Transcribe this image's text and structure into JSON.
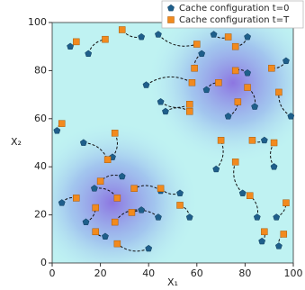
{
  "chart_data": {
    "type": "scatter",
    "xlabel": "X₁",
    "ylabel": "X₂",
    "xlim": [
      0,
      100
    ],
    "ylim": [
      0,
      100
    ],
    "xticks": [
      0,
      20,
      40,
      60,
      80,
      100
    ],
    "yticks": [
      0,
      20,
      40,
      60,
      80,
      100
    ],
    "legend": "upper right",
    "series": [
      {
        "name": "Cache configuration t=0",
        "color": "#1f5f8b",
        "marker": "pentagon",
        "x": [
          15,
          7.5,
          37,
          44,
          39,
          45,
          47,
          67,
          81,
          62,
          64,
          81,
          97,
          84,
          99,
          73,
          88,
          68,
          79,
          85,
          92,
          93,
          94,
          87,
          2,
          25,
          13,
          29,
          4,
          14,
          22,
          37,
          17.5,
          45,
          53,
          57,
          40,
          44
        ],
        "values": [
          87,
          90,
          94,
          95,
          74,
          67,
          63,
          95,
          94,
          87,
          72,
          79,
          84,
          65,
          61,
          61,
          51,
          39,
          29,
          19,
          40,
          19,
          7,
          9,
          55,
          44,
          50,
          36,
          25,
          17,
          11,
          22,
          31,
          30,
          29,
          19,
          6,
          19
        ]
      },
      {
        "name": "Cache configuration t=T",
        "color": "#f28a1e",
        "marker": "square",
        "x": [
          22,
          10,
          29,
          60,
          58,
          57,
          57,
          73,
          76,
          59,
          69,
          76,
          91,
          81,
          94,
          77,
          83,
          70,
          76,
          82,
          92,
          97,
          96,
          88,
          4,
          26,
          23,
          20,
          10,
          18,
          18,
          26,
          27,
          34,
          45,
          53,
          27,
          33
        ],
        "values": [
          93,
          92,
          97,
          91,
          75,
          66,
          63,
          94,
          90,
          81,
          75,
          80,
          81,
          73,
          71,
          67,
          51,
          51,
          42,
          28,
          50,
          25,
          12,
          13,
          58,
          54,
          43,
          34,
          27,
          23,
          13,
          17,
          27,
          31,
          31,
          24,
          8,
          21
        ]
      }
    ]
  }
}
